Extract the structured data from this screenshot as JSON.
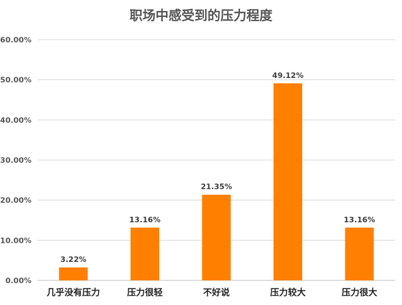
{
  "chart_data": {
    "type": "bar",
    "title": "职场中感受到的压力程度",
    "xlabel": "",
    "ylabel": "",
    "categories": [
      "几乎没有压力",
      "压力很轻",
      "不好说",
      "压力较大",
      "压力很大"
    ],
    "values": [
      3.22,
      13.16,
      21.35,
      49.12,
      13.16
    ],
    "data_labels": [
      "3.22%",
      "13.16%",
      "21.35%",
      "49.12%",
      "13.16%"
    ],
    "ylim": [
      0,
      60
    ],
    "y_ticks": [
      0,
      10,
      20,
      30,
      40,
      50,
      60
    ],
    "y_tick_labels": [
      "0.00%",
      "10.00%",
      "20.00%",
      "30.00%",
      "40.00%",
      "50.00%",
      "60.00%"
    ],
    "grid": true,
    "legend": "none",
    "bar_color": "#ff8000"
  }
}
